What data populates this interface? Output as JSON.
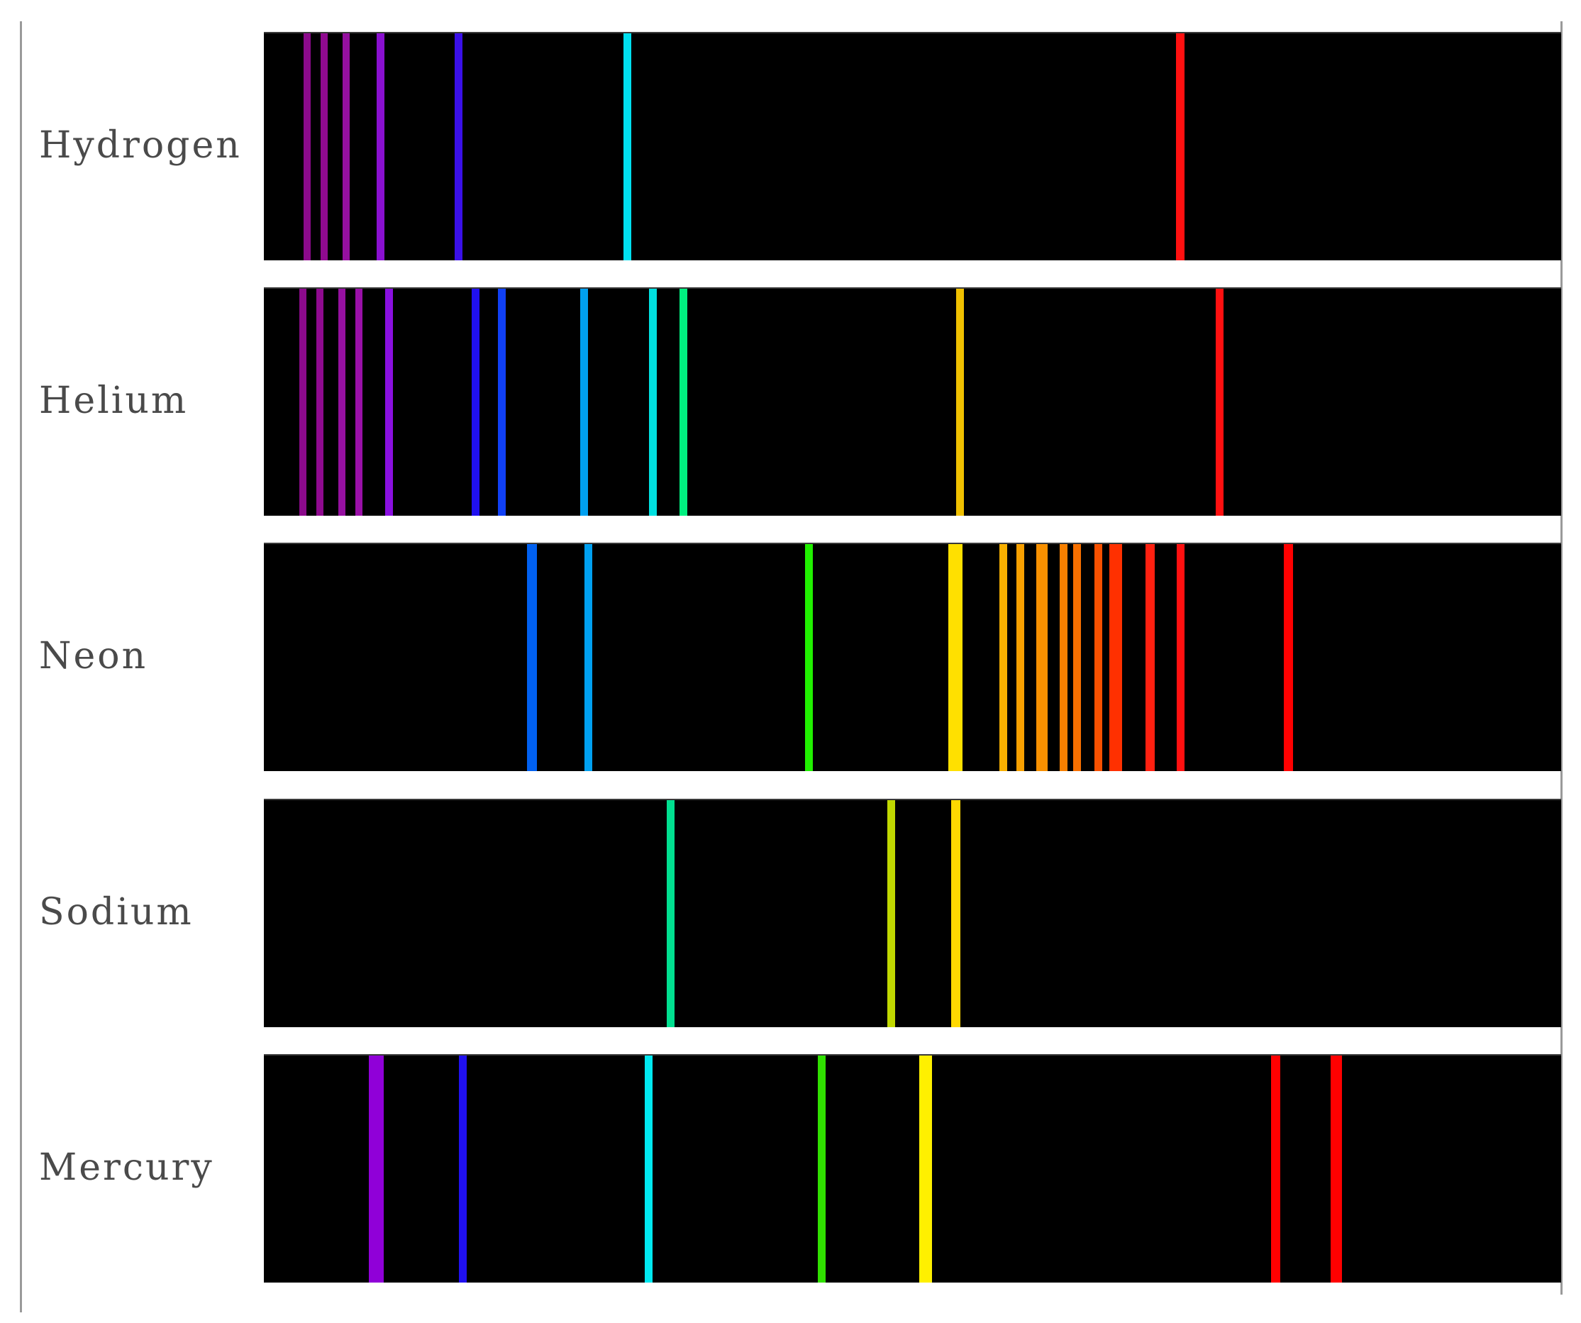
{
  "figure": {
    "wavelength_range_nm": [
      400,
      700
    ],
    "rows": [
      {
        "element": "Hydrogen",
        "lines": [
          {
            "nm": 410,
            "color": "#8b0a8b",
            "w": 1.1
          },
          {
            "nm": 414,
            "color": "#8f0a8f",
            "w": 1.1
          },
          {
            "nm": 419,
            "color": "#9510a0",
            "w": 1.1
          },
          {
            "nm": 427,
            "color": "#8a10d0",
            "w": 1.2
          },
          {
            "nm": 445,
            "color": "#3a10e8",
            "w": 1.2
          },
          {
            "nm": 484,
            "color": "#00e0f0",
            "w": 1.2
          },
          {
            "nm": 612,
            "color": "#ff1010",
            "w": 1.3
          }
        ]
      },
      {
        "element": "Helium",
        "lines": [
          {
            "nm": 409,
            "color": "#8b0a8b",
            "w": 1.1
          },
          {
            "nm": 413,
            "color": "#8f0a8f",
            "w": 1.1
          },
          {
            "nm": 418,
            "color": "#9510a0",
            "w": 1.1
          },
          {
            "nm": 422,
            "color": "#9a10a8",
            "w": 1.1
          },
          {
            "nm": 429,
            "color": "#8a10e0",
            "w": 1.2
          },
          {
            "nm": 449,
            "color": "#2010f0",
            "w": 1.2
          },
          {
            "nm": 455,
            "color": "#1040f5",
            "w": 1.2
          },
          {
            "nm": 474,
            "color": "#00a0f0",
            "w": 1.2
          },
          {
            "nm": 490,
            "color": "#00e0e0",
            "w": 1.2
          },
          {
            "nm": 497,
            "color": "#00f080",
            "w": 1.2
          },
          {
            "nm": 561,
            "color": "#f0c000",
            "w": 1.2
          },
          {
            "nm": 621,
            "color": "#ff1010",
            "w": 1.2
          }
        ]
      },
      {
        "element": "Neon",
        "lines": [
          {
            "nm": 462,
            "color": "#0060f0",
            "w": 1.6
          },
          {
            "nm": 475,
            "color": "#00a0f0",
            "w": 1.2
          },
          {
            "nm": 526,
            "color": "#20f000",
            "w": 1.2
          },
          {
            "nm": 560,
            "color": "#ffe000",
            "w": 2.2
          },
          {
            "nm": 571,
            "color": "#f8b000",
            "w": 1.2
          },
          {
            "nm": 575,
            "color": "#f8a000",
            "w": 1.2
          },
          {
            "nm": 580,
            "color": "#f89000",
            "w": 1.8
          },
          {
            "nm": 585,
            "color": "#f88000",
            "w": 1.2
          },
          {
            "nm": 588,
            "color": "#f87000",
            "w": 1.2
          },
          {
            "nm": 593,
            "color": "#f85000",
            "w": 1.2
          },
          {
            "nm": 597,
            "color": "#ff3000",
            "w": 2.0
          },
          {
            "nm": 605,
            "color": "#ff2010",
            "w": 1.4
          },
          {
            "nm": 612,
            "color": "#ff1010",
            "w": 1.2
          },
          {
            "nm": 637,
            "color": "#ff0000",
            "w": 1.4
          }
        ]
      },
      {
        "element": "Sodium",
        "lines": [
          {
            "nm": 494,
            "color": "#00e090",
            "w": 1.2
          },
          {
            "nm": 545,
            "color": "#c0d800",
            "w": 1.2
          },
          {
            "nm": 560,
            "color": "#ffd800",
            "w": 1.4
          }
        ]
      },
      {
        "element": "Mercury",
        "lines": [
          {
            "nm": 426,
            "color": "#9000d8",
            "w": 2.3
          },
          {
            "nm": 446,
            "color": "#2010f0",
            "w": 1.2
          },
          {
            "nm": 489,
            "color": "#00e8f0",
            "w": 1.2
          },
          {
            "nm": 529,
            "color": "#30e000",
            "w": 1.2
          },
          {
            "nm": 553,
            "color": "#fff000",
            "w": 2.0
          },
          {
            "nm": 634,
            "color": "#ff0000",
            "w": 1.4
          },
          {
            "nm": 648,
            "color": "#ff0000",
            "w": 1.8
          }
        ]
      }
    ]
  }
}
